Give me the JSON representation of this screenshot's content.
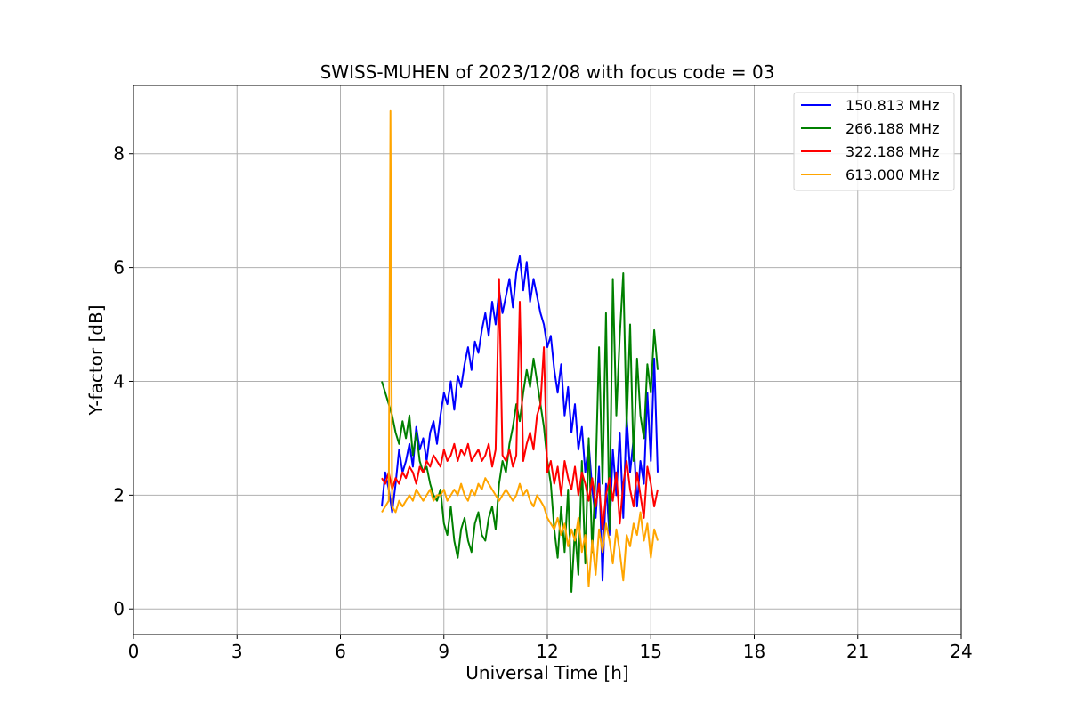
{
  "chart_data": {
    "type": "line",
    "title": "SWISS-MUHEN of 2023/12/08 with focus code = 03",
    "xlabel": "Universal Time [h]",
    "ylabel": "Y-factor [dB]",
    "xlim": [
      0,
      24
    ],
    "ylim": [
      -0.45,
      9.2
    ],
    "xticks": [
      0,
      3,
      6,
      9,
      12,
      15,
      18,
      21,
      24
    ],
    "yticks": [
      0,
      2,
      4,
      6,
      8
    ],
    "grid": true,
    "legend_position": "top-right",
    "series": [
      {
        "name": "150.813 MHz",
        "color": "#0000ff",
        "x": [
          7.2,
          7.3,
          7.4,
          7.5,
          7.6,
          7.7,
          7.8,
          7.9,
          8.0,
          8.1,
          8.2,
          8.3,
          8.4,
          8.5,
          8.6,
          8.7,
          8.8,
          8.9,
          9.0,
          9.1,
          9.2,
          9.3,
          9.4,
          9.5,
          9.6,
          9.7,
          9.8,
          9.9,
          10.0,
          10.1,
          10.2,
          10.3,
          10.4,
          10.5,
          10.6,
          10.7,
          10.8,
          10.9,
          11.0,
          11.1,
          11.2,
          11.3,
          11.4,
          11.5,
          11.6,
          11.7,
          11.8,
          11.9,
          12.0,
          12.1,
          12.2,
          12.3,
          12.4,
          12.5,
          12.6,
          12.7,
          12.8,
          12.9,
          13.0,
          13.1,
          13.2,
          13.3,
          13.4,
          13.5,
          13.6,
          13.7,
          13.8,
          13.9,
          14.0,
          14.1,
          14.2,
          14.3,
          14.4,
          14.5,
          14.6,
          14.7,
          14.8,
          14.9,
          15.0,
          15.1,
          15.2
        ],
        "y": [
          1.8,
          2.4,
          2.1,
          1.7,
          2.2,
          2.8,
          2.4,
          2.6,
          2.9,
          2.5,
          3.2,
          2.8,
          3.0,
          2.6,
          3.1,
          3.3,
          2.9,
          3.4,
          3.8,
          3.6,
          4.0,
          3.5,
          4.1,
          3.9,
          4.3,
          4.6,
          4.2,
          4.7,
          4.5,
          4.9,
          5.2,
          4.8,
          5.4,
          5.0,
          5.6,
          5.2,
          5.5,
          5.8,
          5.3,
          5.9,
          6.2,
          5.6,
          6.1,
          5.4,
          5.8,
          5.5,
          5.2,
          5.0,
          4.6,
          4.8,
          4.2,
          3.8,
          4.3,
          3.4,
          3.9,
          3.1,
          3.6,
          2.8,
          3.2,
          2.4,
          2.9,
          2.1,
          1.6,
          2.5,
          0.5,
          2.2,
          1.3,
          2.8,
          2.0,
          3.1,
          1.6,
          3.4,
          2.4,
          3.0,
          1.8,
          2.6,
          2.2,
          3.8,
          2.6,
          4.4,
          2.4
        ]
      },
      {
        "name": "266.188 MHz",
        "color": "#008000",
        "x": [
          7.2,
          7.3,
          7.4,
          7.5,
          7.6,
          7.7,
          7.8,
          7.9,
          8.0,
          8.1,
          8.2,
          8.3,
          8.4,
          8.5,
          8.6,
          8.7,
          8.8,
          8.9,
          9.0,
          9.1,
          9.2,
          9.3,
          9.4,
          9.5,
          9.6,
          9.7,
          9.8,
          9.9,
          10.0,
          10.1,
          10.2,
          10.3,
          10.4,
          10.5,
          10.6,
          10.7,
          10.8,
          10.9,
          11.0,
          11.1,
          11.2,
          11.3,
          11.4,
          11.5,
          11.6,
          11.7,
          11.8,
          11.9,
          12.0,
          12.1,
          12.2,
          12.3,
          12.4,
          12.5,
          12.6,
          12.7,
          12.8,
          12.9,
          13.0,
          13.1,
          13.2,
          13.3,
          13.4,
          13.5,
          13.6,
          13.7,
          13.8,
          13.9,
          14.0,
          14.1,
          14.2,
          14.3,
          14.4,
          14.5,
          14.6,
          14.7,
          14.8,
          14.9,
          15.0,
          15.1,
          15.2
        ],
        "y": [
          4.0,
          3.8,
          3.6,
          3.4,
          3.1,
          2.9,
          3.3,
          3.0,
          3.4,
          2.7,
          3.1,
          2.6,
          2.4,
          2.5,
          2.2,
          2.0,
          1.9,
          2.1,
          1.5,
          1.3,
          1.8,
          1.2,
          0.9,
          1.4,
          1.6,
          1.2,
          1.0,
          1.5,
          1.7,
          1.3,
          1.2,
          1.6,
          1.8,
          1.4,
          2.2,
          2.6,
          2.4,
          2.9,
          3.2,
          3.6,
          3.3,
          3.8,
          4.2,
          3.9,
          4.4,
          4.0,
          3.6,
          3.2,
          2.6,
          2.2,
          1.4,
          0.9,
          1.8,
          1.0,
          2.1,
          0.3,
          1.4,
          0.6,
          2.6,
          0.8,
          3.0,
          1.0,
          2.4,
          4.6,
          2.2,
          5.2,
          1.4,
          5.8,
          3.4,
          4.8,
          5.9,
          3.2,
          5.0,
          2.6,
          4.4,
          3.4,
          3.0,
          4.3,
          3.8,
          4.9,
          4.2
        ]
      },
      {
        "name": "322.188 MHz",
        "color": "#ff0000",
        "x": [
          7.2,
          7.3,
          7.4,
          7.5,
          7.6,
          7.7,
          7.8,
          7.9,
          8.0,
          8.1,
          8.2,
          8.3,
          8.4,
          8.5,
          8.6,
          8.7,
          8.8,
          8.9,
          9.0,
          9.1,
          9.2,
          9.3,
          9.4,
          9.5,
          9.6,
          9.7,
          9.8,
          9.9,
          10.0,
          10.1,
          10.2,
          10.3,
          10.4,
          10.5,
          10.6,
          10.7,
          10.8,
          10.9,
          11.0,
          11.1,
          11.2,
          11.3,
          11.4,
          11.5,
          11.6,
          11.7,
          11.8,
          11.9,
          12.0,
          12.1,
          12.2,
          12.3,
          12.4,
          12.5,
          12.6,
          12.7,
          12.8,
          12.9,
          13.0,
          13.1,
          13.2,
          13.3,
          13.4,
          13.5,
          13.6,
          13.7,
          13.8,
          13.9,
          14.0,
          14.1,
          14.2,
          14.3,
          14.4,
          14.5,
          14.6,
          14.7,
          14.8,
          14.9,
          15.0,
          15.1,
          15.2
        ],
        "y": [
          2.3,
          2.2,
          2.4,
          2.1,
          2.3,
          2.2,
          2.4,
          2.3,
          2.5,
          2.4,
          2.2,
          2.5,
          2.4,
          2.6,
          2.5,
          2.7,
          2.6,
          2.5,
          2.8,
          2.6,
          2.7,
          2.9,
          2.6,
          2.8,
          2.7,
          2.9,
          2.6,
          2.7,
          2.8,
          2.6,
          2.7,
          2.9,
          2.5,
          2.8,
          5.8,
          2.7,
          2.6,
          2.8,
          2.5,
          2.7,
          5.4,
          2.6,
          2.9,
          3.1,
          2.8,
          3.4,
          3.6,
          4.6,
          2.4,
          2.6,
          2.2,
          2.5,
          2.0,
          2.6,
          2.3,
          2.1,
          2.5,
          2.0,
          2.4,
          2.2,
          1.9,
          2.3,
          1.8,
          2.2,
          1.4,
          2.0,
          2.3,
          1.9,
          2.4,
          1.5,
          2.2,
          2.6,
          2.1,
          1.8,
          2.4,
          2.0,
          1.6,
          2.5,
          2.2,
          1.8,
          2.1
        ]
      },
      {
        "name": "613.000 MHz",
        "color": "#ffa500",
        "x": [
          7.2,
          7.3,
          7.4,
          7.45,
          7.5,
          7.6,
          7.7,
          7.8,
          7.9,
          8.0,
          8.1,
          8.2,
          8.3,
          8.4,
          8.5,
          8.6,
          8.7,
          8.8,
          8.9,
          9.0,
          9.1,
          9.2,
          9.3,
          9.4,
          9.5,
          9.6,
          9.7,
          9.8,
          9.9,
          10.0,
          10.1,
          10.2,
          10.3,
          10.4,
          10.5,
          10.6,
          10.7,
          10.8,
          10.9,
          11.0,
          11.1,
          11.2,
          11.3,
          11.4,
          11.5,
          11.6,
          11.7,
          11.8,
          11.9,
          12.0,
          12.1,
          12.2,
          12.3,
          12.4,
          12.5,
          12.6,
          12.7,
          12.8,
          12.9,
          13.0,
          13.1,
          13.2,
          13.3,
          13.4,
          13.5,
          13.6,
          13.7,
          13.8,
          13.9,
          14.0,
          14.1,
          14.2,
          14.3,
          14.4,
          14.5,
          14.6,
          14.7,
          14.8,
          14.9,
          15.0,
          15.1,
          15.2
        ],
        "y": [
          1.7,
          1.8,
          1.9,
          8.75,
          1.8,
          1.7,
          1.9,
          1.8,
          1.9,
          2.0,
          1.9,
          2.1,
          2.0,
          1.9,
          2.0,
          2.1,
          1.9,
          2.0,
          2.0,
          2.1,
          1.9,
          2.0,
          2.1,
          2.0,
          2.2,
          2.0,
          1.9,
          2.1,
          2.0,
          2.2,
          2.1,
          2.3,
          2.2,
          2.1,
          2.0,
          1.9,
          2.0,
          2.1,
          2.0,
          1.9,
          2.0,
          2.2,
          2.0,
          2.1,
          1.9,
          1.8,
          2.0,
          1.9,
          1.8,
          1.6,
          1.5,
          1.4,
          1.6,
          1.3,
          1.5,
          1.1,
          1.4,
          1.2,
          1.6,
          1.0,
          1.3,
          0.4,
          1.2,
          0.6,
          1.4,
          1.0,
          1.5,
          1.2,
          0.8,
          1.4,
          1.0,
          0.5,
          1.3,
          1.1,
          1.5,
          1.3,
          1.7,
          1.2,
          1.5,
          0.9,
          1.4,
          1.2
        ]
      }
    ]
  }
}
